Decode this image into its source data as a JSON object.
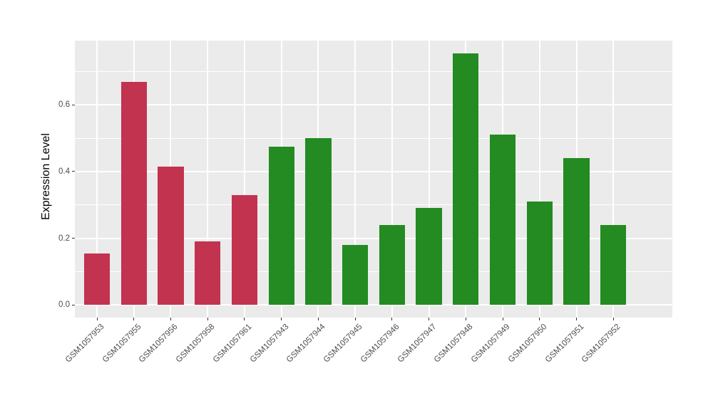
{
  "chart_data": {
    "type": "bar",
    "title": "",
    "xlabel": "",
    "ylabel": "Expression Level",
    "categories": [
      "GSM1057953",
      "GSM1057955",
      "GSM1057956",
      "GSM1057958",
      "GSM1057961",
      "GSM1057943",
      "GSM1057944",
      "GSM1057945",
      "GSM1057946",
      "GSM1057947",
      "GSM1057948",
      "GSM1057949",
      "GSM1057950",
      "GSM1057951",
      "GSM1057952"
    ],
    "values": [
      0.155,
      0.67,
      0.415,
      0.19,
      0.33,
      0.475,
      0.5,
      0.18,
      0.24,
      0.29,
      0.755,
      0.51,
      0.31,
      0.44,
      0.24
    ],
    "bar_colors": [
      "#C23350",
      "#C23350",
      "#C23350",
      "#C23350",
      "#C23350",
      "#238B22",
      "#238B22",
      "#238B22",
      "#238B22",
      "#238B22",
      "#238B22",
      "#238B22",
      "#238B22",
      "#238B22",
      "#238B22"
    ],
    "group_colors": {
      "red_group": "#C23350",
      "green_group": "#238B22"
    },
    "ylim": [
      -0.038,
      0.793
    ],
    "yticks": {
      "values": [
        0.0,
        0.2,
        0.4,
        0.6
      ],
      "labels": [
        "0.0",
        "0.2",
        "0.4",
        "0.6"
      ]
    },
    "minor_gridlines": [
      0.1,
      0.3,
      0.5,
      0.7
    ],
    "grid": "on",
    "legend": "none",
    "panel_background": "#EBEBEB",
    "gridline_color": "#FFFFFF",
    "tick_label_color": "#4D4D4D",
    "tick_mark_color": "#333333",
    "axis_title_color": "#000000",
    "x_label_rotation_deg": 45
  }
}
